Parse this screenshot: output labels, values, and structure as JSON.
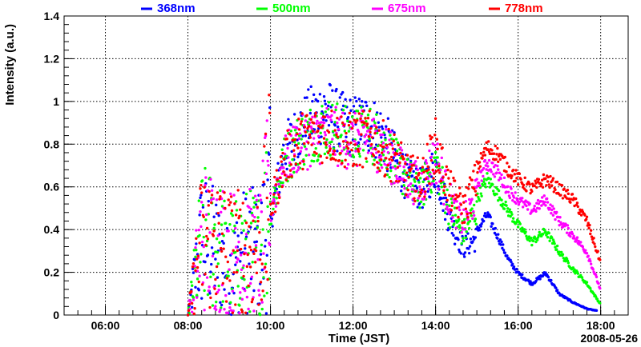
{
  "chart_data": {
    "type": "scatter",
    "xlabel": "Time (JST)",
    "ylabel": "Intensity (a.u.)",
    "date_label": "2008-05-26",
    "x_unit": "hours (JST)",
    "xlim": [
      "05:00",
      "18:40"
    ],
    "ylim": [
      0,
      1.4
    ],
    "x_ticks": [
      "06:00",
      "08:00",
      "10:00",
      "12:00",
      "14:00",
      "16:00",
      "18:00"
    ],
    "y_ticks": [
      "0",
      "0.2",
      "0.4",
      "0.6",
      "0.8",
      "1",
      "1.2",
      "1.4"
    ],
    "grid": true,
    "legend_position": "top",
    "series": [
      {
        "name": "368nm",
        "color": "#0000ff",
        "points": [
          [
            "08:00",
            0.0
          ],
          [
            "08:20",
            0.35
          ],
          [
            "08:40",
            0.3
          ],
          [
            "09:00",
            0.2
          ],
          [
            "09:20",
            0.3
          ],
          [
            "09:45",
            0.3
          ],
          [
            "10:00",
            0.5
          ],
          [
            "10:20",
            0.85
          ],
          [
            "10:40",
            0.95
          ],
          [
            "11:00",
            1.03
          ],
          [
            "11:20",
            1.07
          ],
          [
            "11:40",
            1.0
          ],
          [
            "12:00",
            0.98
          ],
          [
            "12:20",
            1.0
          ],
          [
            "12:40",
            0.95
          ],
          [
            "13:00",
            0.82
          ],
          [
            "13:20",
            0.7
          ],
          [
            "13:40",
            0.65
          ],
          [
            "14:00",
            0.78
          ],
          [
            "14:20",
            0.5
          ],
          [
            "14:40",
            0.35
          ],
          [
            "15:00",
            0.4
          ],
          [
            "15:15",
            0.48
          ],
          [
            "15:30",
            0.38
          ],
          [
            "15:45",
            0.27
          ],
          [
            "16:00",
            0.2
          ],
          [
            "16:20",
            0.15
          ],
          [
            "16:40",
            0.2
          ],
          [
            "17:00",
            0.1
          ],
          [
            "17:20",
            0.06
          ],
          [
            "17:40",
            0.03
          ],
          [
            "17:55",
            0.02
          ]
        ]
      },
      {
        "name": "500nm",
        "color": "#00ff00",
        "points": [
          [
            "08:00",
            0.0
          ],
          [
            "08:20",
            0.35
          ],
          [
            "08:40",
            0.35
          ],
          [
            "09:00",
            0.25
          ],
          [
            "09:20",
            0.3
          ],
          [
            "09:45",
            0.3
          ],
          [
            "10:00",
            0.55
          ],
          [
            "10:20",
            0.8
          ],
          [
            "10:40",
            0.9
          ],
          [
            "11:00",
            0.95
          ],
          [
            "11:20",
            0.98
          ],
          [
            "11:40",
            0.95
          ],
          [
            "12:00",
            0.92
          ],
          [
            "12:20",
            0.95
          ],
          [
            "12:40",
            0.9
          ],
          [
            "13:00",
            0.8
          ],
          [
            "13:20",
            0.7
          ],
          [
            "13:40",
            0.65
          ],
          [
            "14:00",
            0.8
          ],
          [
            "14:20",
            0.55
          ],
          [
            "14:40",
            0.42
          ],
          [
            "15:00",
            0.55
          ],
          [
            "15:15",
            0.65
          ],
          [
            "15:30",
            0.58
          ],
          [
            "15:45",
            0.5
          ],
          [
            "16:00",
            0.43
          ],
          [
            "16:20",
            0.35
          ],
          [
            "16:40",
            0.4
          ],
          [
            "17:00",
            0.3
          ],
          [
            "17:20",
            0.22
          ],
          [
            "17:40",
            0.15
          ],
          [
            "18:00",
            0.05
          ]
        ]
      },
      {
        "name": "675nm",
        "color": "#ff00ff",
        "points": [
          [
            "08:00",
            0.0
          ],
          [
            "08:20",
            0.35
          ],
          [
            "08:40",
            0.35
          ],
          [
            "09:00",
            0.3
          ],
          [
            "09:20",
            0.3
          ],
          [
            "09:45",
            0.3
          ],
          [
            "10:00",
            0.55
          ],
          [
            "10:20",
            0.8
          ],
          [
            "10:40",
            0.88
          ],
          [
            "11:00",
            0.92
          ],
          [
            "11:20",
            0.95
          ],
          [
            "11:40",
            0.92
          ],
          [
            "12:00",
            0.9
          ],
          [
            "12:20",
            0.92
          ],
          [
            "12:40",
            0.88
          ],
          [
            "13:00",
            0.8
          ],
          [
            "13:20",
            0.7
          ],
          [
            "13:40",
            0.68
          ],
          [
            "14:00",
            0.82
          ],
          [
            "14:20",
            0.6
          ],
          [
            "14:40",
            0.48
          ],
          [
            "15:00",
            0.62
          ],
          [
            "15:15",
            0.73
          ],
          [
            "15:30",
            0.68
          ],
          [
            "15:45",
            0.6
          ],
          [
            "16:00",
            0.55
          ],
          [
            "16:20",
            0.5
          ],
          [
            "16:40",
            0.55
          ],
          [
            "17:00",
            0.45
          ],
          [
            "17:20",
            0.38
          ],
          [
            "17:40",
            0.3
          ],
          [
            "18:00",
            0.12
          ]
        ]
      },
      {
        "name": "778nm",
        "color": "#ff0000",
        "points": [
          [
            "08:00",
            0.0
          ],
          [
            "08:20",
            0.35
          ],
          [
            "08:40",
            0.35
          ],
          [
            "09:00",
            0.3
          ],
          [
            "09:20",
            0.3
          ],
          [
            "09:45",
            0.3
          ],
          [
            "10:00",
            0.55
          ],
          [
            "10:20",
            0.8
          ],
          [
            "10:40",
            0.9
          ],
          [
            "11:00",
            0.93
          ],
          [
            "11:20",
            0.95
          ],
          [
            "11:40",
            0.92
          ],
          [
            "12:00",
            0.9
          ],
          [
            "12:20",
            0.92
          ],
          [
            "12:40",
            0.88
          ],
          [
            "13:00",
            0.82
          ],
          [
            "13:20",
            0.72
          ],
          [
            "13:40",
            0.7
          ],
          [
            "14:00",
            0.88
          ],
          [
            "14:20",
            0.65
          ],
          [
            "14:40",
            0.55
          ],
          [
            "15:00",
            0.7
          ],
          [
            "15:15",
            0.8
          ],
          [
            "15:30",
            0.77
          ],
          [
            "15:45",
            0.7
          ],
          [
            "16:00",
            0.65
          ],
          [
            "16:20",
            0.6
          ],
          [
            "16:40",
            0.65
          ],
          [
            "17:00",
            0.6
          ],
          [
            "17:20",
            0.55
          ],
          [
            "17:40",
            0.45
          ],
          [
            "18:00",
            0.25
          ]
        ]
      }
    ]
  }
}
